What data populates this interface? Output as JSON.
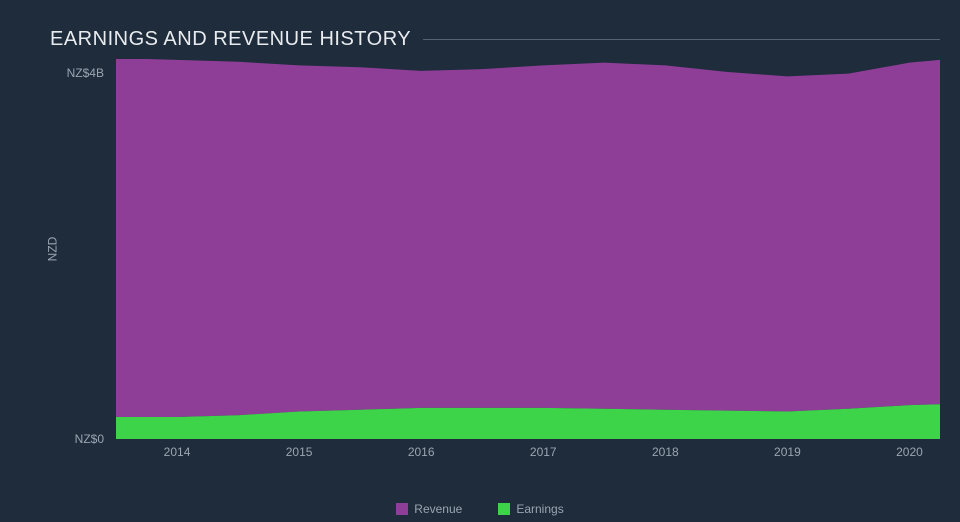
{
  "chart": {
    "type": "area-stacked",
    "title": "EARNINGS AND REVENUE HISTORY",
    "title_fontsize": 20,
    "title_color": "#e8ecef",
    "background_color": "#1e2c3c",
    "axis_label_color": "#9aa5b1",
    "axis_fontsize": 12,
    "title_rule_color": "#556270",
    "y_axis": {
      "label": "NZD",
      "ticks": [
        {
          "value": 0,
          "label": "NZ$0"
        },
        {
          "value": 4,
          "label": "NZ$4B"
        }
      ],
      "ylim": [
        0,
        4.15
      ]
    },
    "x_axis": {
      "xlim": [
        2013.5,
        2020.25
      ],
      "tick_labels": [
        "2014",
        "2015",
        "2016",
        "2017",
        "2018",
        "2019",
        "2020"
      ],
      "tick_values": [
        2014,
        2015,
        2016,
        2017,
        2018,
        2019,
        2020
      ]
    },
    "series": [
      {
        "name": "Earnings",
        "color": "#3dd44a",
        "x": [
          2013.5,
          2014,
          2014.5,
          2015,
          2015.5,
          2016,
          2016.5,
          2017,
          2017.5,
          2018,
          2018.5,
          2019,
          2019.5,
          2020,
          2020.25
        ],
        "y": [
          0.24,
          0.24,
          0.26,
          0.3,
          0.32,
          0.34,
          0.34,
          0.34,
          0.33,
          0.32,
          0.31,
          0.3,
          0.33,
          0.37,
          0.38
        ]
      },
      {
        "name": "Revenue",
        "color": "#8e3e97",
        "x": [
          2013.5,
          2014,
          2014.5,
          2015,
          2015.5,
          2016,
          2016.5,
          2017,
          2017.5,
          2018,
          2018.5,
          2019,
          2019.5,
          2020,
          2020.25
        ],
        "y": [
          3.92,
          3.9,
          3.86,
          3.78,
          3.74,
          3.68,
          3.7,
          3.74,
          3.78,
          3.76,
          3.7,
          3.66,
          3.66,
          3.74,
          3.76
        ]
      }
    ],
    "legend": {
      "items": [
        {
          "label": "Revenue",
          "color": "#8e3e97"
        },
        {
          "label": "Earnings",
          "color": "#3dd44a"
        }
      ]
    }
  }
}
